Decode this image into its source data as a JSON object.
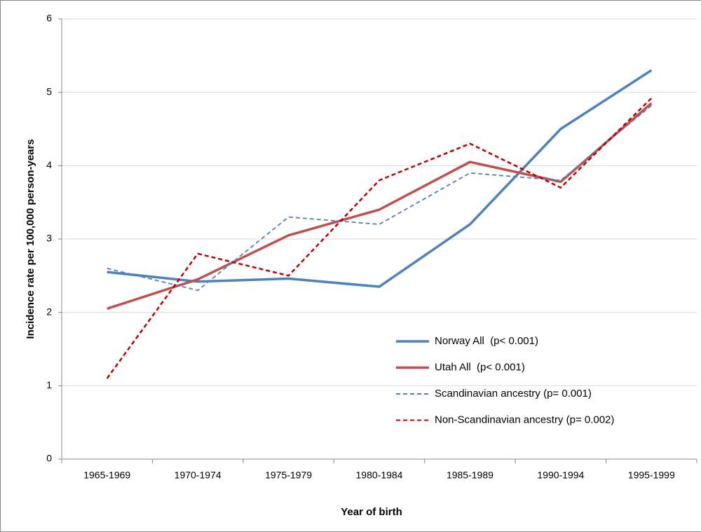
{
  "chart_data": {
    "type": "line",
    "x_label": "Year of birth",
    "y_label": "Incidence rate per 100,000 person-years",
    "categories": [
      "1965-1969",
      "1970-1974",
      "1975-1979",
      "1980-1984",
      "1985-1989",
      "1990-1994",
      "1995-1999"
    ],
    "series": [
      {
        "name": "Norway All  (p< 0.001)",
        "color": "#4f81bd",
        "line_style": "solid",
        "values": [
          2.55,
          2.42,
          2.46,
          2.35,
          3.2,
          4.5,
          5.3
        ]
      },
      {
        "name": "Utah All  (p< 0.001)",
        "color": "#c0504d",
        "line_style": "solid",
        "values": [
          2.05,
          2.45,
          3.05,
          3.4,
          4.05,
          3.78,
          4.85
        ]
      },
      {
        "name": "Scandinavian ancestry (p= 0.001)",
        "color": "#4f81bd",
        "line_style": "dashed",
        "values": [
          2.6,
          2.3,
          3.3,
          3.2,
          3.9,
          3.8,
          4.82
        ]
      },
      {
        "name": "Non-Scandinavian ancestry (p= 0.002)",
        "color": "#c00000",
        "line_style": "dashed",
        "values": [
          1.1,
          2.8,
          2.5,
          3.8,
          4.3,
          3.7,
          4.92
        ]
      }
    ],
    "ylim": [
      0,
      6
    ],
    "yticks": [
      0,
      1,
      2,
      3,
      4,
      5,
      6
    ],
    "grid": true
  }
}
